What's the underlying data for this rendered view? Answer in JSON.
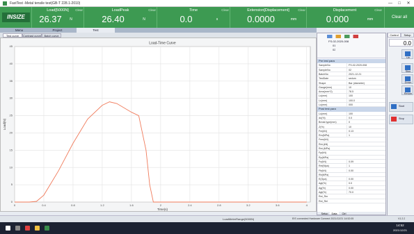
{
  "window": {
    "title": "FastTest -Metal tensile test(GB-T 228.1-2010)"
  },
  "logo": "INSIZE",
  "readouts": [
    {
      "label": "Load[5000N]",
      "value": "26.37",
      "unit": "N",
      "clear": "Clear"
    },
    {
      "label": "LoadPeak",
      "value": "26.40",
      "unit": "N",
      "clear": "Clear"
    },
    {
      "label": "Time",
      "value": "0.0",
      "unit": "s",
      "clear": "Clear"
    },
    {
      "label": "Extension[Displacement]",
      "value": "0.0000",
      "unit": "mm",
      "clear": "Clear"
    },
    {
      "label": "Displacement",
      "value": "0.000",
      "unit": "mm",
      "clear": "Clear"
    }
  ],
  "clear_all": "Clear all",
  "main_tabs": [
    "Menu",
    "Project",
    "Test"
  ],
  "sub_tabs": [
    "Test curve",
    "Contrast curve",
    "Batch curve"
  ],
  "chart_data": {
    "type": "line",
    "title": "Load-Time Curve",
    "x_label": "Time(s)",
    "y_label": "Load(N)",
    "x": [
      0,
      0.2,
      0.3,
      0.4,
      0.6,
      0.8,
      1.0,
      1.2,
      1.3,
      1.4,
      1.6,
      1.7,
      1.8,
      1.85,
      1.9,
      2.0,
      4.0
    ],
    "values": [
      0,
      0,
      0.2,
      2,
      9,
      17,
      24,
      28,
      29,
      28.5,
      26,
      25,
      15,
      5,
      0,
      0,
      0
    ],
    "color": "#f07a5a",
    "xlim": [
      0,
      4.05
    ],
    "xticks": [
      0,
      0.4,
      0.8,
      1.2,
      1.6,
      2,
      2.4,
      2.8,
      3.2,
      3.6,
      4
    ],
    "ylim": [
      0,
      45
    ],
    "yticks": [
      0,
      5,
      10,
      15,
      20,
      25,
      30,
      35,
      40,
      45
    ],
    "grid": true
  },
  "tree": [
    "FS-02-2020-008",
    "01",
    "02"
  ],
  "params": {
    "pre_title": "Pre test para",
    "pre_rows": [
      [
        "SampleNo",
        "FS-02-2020-008"
      ],
      [
        "SampleNo",
        "02"
      ],
      [
        "BatchNo",
        "2021-12-21"
      ],
      [
        "TestDate",
        "sedum"
      ],
      [
        "Shape",
        "Bar (diameter)"
      ],
      [
        "Gauge(mm)",
        "10"
      ],
      [
        "Area(mm^2)",
        "78.5"
      ],
      [
        "Lo(mm)",
        "100"
      ],
      [
        "Lc(mm)",
        "100.0"
      ],
      [
        "Lu(mm)",
        "000"
      ]
    ],
    "post_title": "Post test para",
    "post_rows": [
      [
        "Lu(mm)",
        "100"
      ],
      [
        "du(%)",
        "0.0"
      ],
      [
        "Break type(mm)",
        "0"
      ],
      [
        "Z(%)",
        "10"
      ],
      [
        "Fm(kN)",
        "0.13"
      ],
      [
        "Rm(MPa)",
        "1"
      ],
      [
        "Fem(kN)",
        ""
      ],
      [
        "ReL(kN)",
        ""
      ],
      [
        "ReL(MPa)",
        ""
      ],
      [
        "Fp(kN)",
        ""
      ],
      [
        "Rp(MPa)",
        ""
      ],
      [
        "Fu(kN)",
        "0.09"
      ],
      [
        "Rel(Mpa)",
        "1"
      ],
      [
        "Fb(kN)",
        "0.00"
      ],
      [
        "Rb(MPa)",
        ""
      ],
      [
        "E(Gpa)",
        "0.00"
      ],
      [
        "Agt(%)",
        "0.0"
      ],
      [
        "Ag(%)",
        "0.00"
      ],
      [
        "Agt(%)",
        "70.0"
      ],
      [
        "Ret_Rm",
        ""
      ],
      [
        "Ret_Rel",
        ""
      ]
    ]
  },
  "panel_tabs": [
    "Setup",
    "Data",
    "Ctrl"
  ],
  "control": {
    "tabs": [
      "Control",
      "Setup"
    ],
    "value": "0.0",
    "buttons": [
      "Up",
      "Stop",
      "Down",
      "Return",
      "Start",
      "Stop"
    ]
  },
  "status": [
    "LoadMeterRange(5000N)",
    "EIS connected  Hardware Connect  2021/12/21 14:52:05",
    "V1.2.2"
  ],
  "taskbar": {
    "time": "14:52",
    "date": "2021/12/21"
  }
}
